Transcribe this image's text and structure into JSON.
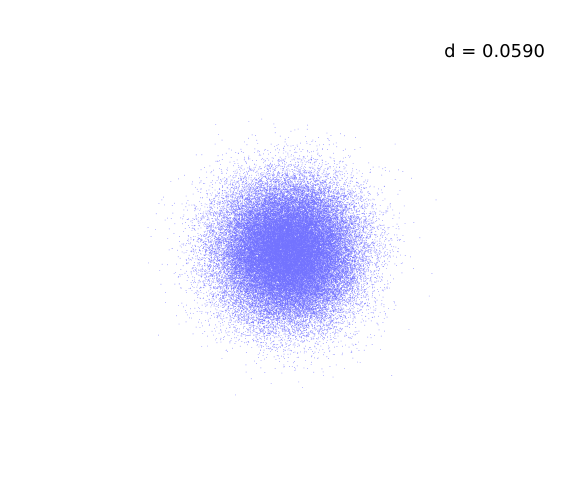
{
  "chart_data": {
    "type": "scatter",
    "title": "",
    "xlabel": "",
    "ylabel": "",
    "axes_visible": false,
    "grid": false,
    "annotation": "d = 0.0590",
    "annotation_placement": "top-right",
    "series": [
      {
        "distribution": "gaussian",
        "center": [
          0,
          0
        ],
        "std": [
          1,
          1
        ],
        "point_count": 60000,
        "color": "#0000ff"
      }
    ],
    "xlim": [
      -4.5,
      4.5
    ],
    "ylim": [
      -4.5,
      4.5
    ]
  }
}
